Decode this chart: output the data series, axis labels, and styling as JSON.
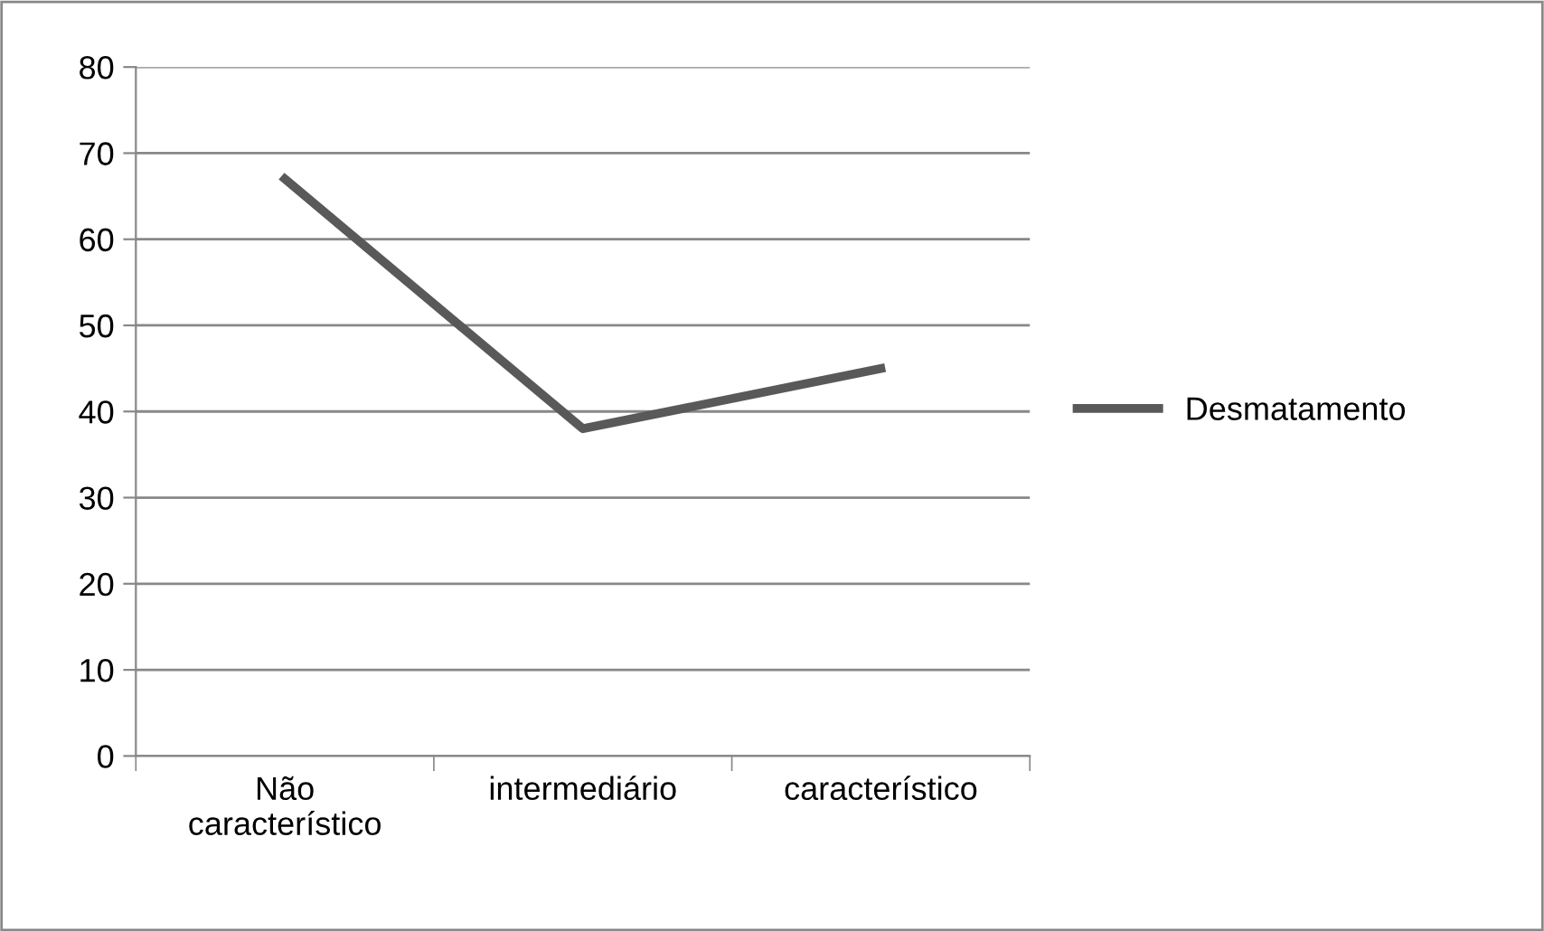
{
  "chart_data": {
    "type": "line",
    "categories": [
      "Não\ncaracterístico",
      "intermediário",
      "característico"
    ],
    "series": [
      {
        "name": "Desmatamento",
        "color": "#595959",
        "values": [
          67,
          38,
          45
        ]
      }
    ],
    "ylim": [
      0,
      80
    ],
    "yticks": [
      0,
      10,
      20,
      30,
      40,
      50,
      60,
      70,
      80
    ],
    "grid": "y",
    "legend": "right",
    "marker": "none",
    "line_style": "solid"
  }
}
